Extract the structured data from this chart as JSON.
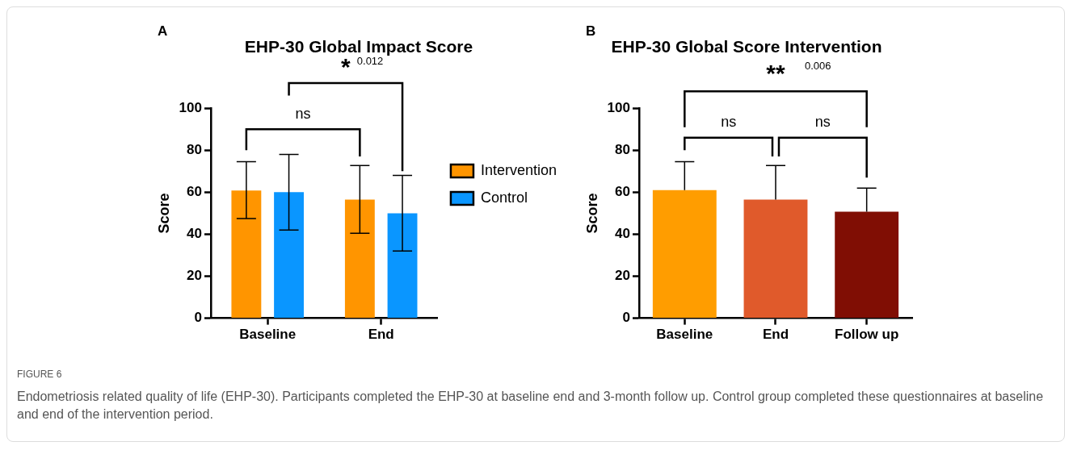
{
  "chart_data": [
    {
      "type": "bar",
      "title": "EHP-30 Global Impact Score",
      "ylabel": "Score",
      "categories": [
        "Baseline",
        "End"
      ],
      "series": [
        {
          "name": "Intervention",
          "color": "#ff9500",
          "values": [
            60.8,
            56.5
          ],
          "errors": [
            [
              47.5,
              74.5
            ],
            [
              40.5,
              72.7
            ]
          ]
        },
        {
          "name": "Control",
          "color": "#0a96ff",
          "values": [
            60,
            50
          ],
          "errors": [
            [
              42,
              78
            ],
            [
              32,
              68
            ]
          ]
        }
      ],
      "ylim": [
        0,
        100
      ],
      "yticks": [
        0,
        20,
        40,
        60,
        80,
        100
      ],
      "grid": false,
      "legend": "right",
      "annotations": [
        "A",
        "ns",
        "*",
        "0.012"
      ]
    },
    {
      "type": "bar",
      "title": "EHP-30 Global Score Intervention",
      "ylabel": "Score",
      "categories": [
        "Baseline",
        "End",
        "Follow up"
      ],
      "values": [
        61,
        56.5,
        50.7
      ],
      "colors": [
        "#ff9d00",
        "#e05a2b",
        "#800e04"
      ],
      "errors": [
        [
          61,
          74.5
        ],
        [
          56.5,
          72.7
        ],
        [
          50.7,
          62
        ]
      ],
      "ylim": [
        0,
        100
      ],
      "yticks": [
        0,
        20,
        40,
        60,
        80,
        100
      ],
      "grid": false,
      "annotations": [
        "B",
        "ns",
        "ns",
        "**",
        "0.006",
        "FIGURE 6",
        "Endometriosis related quality of life (EHP-30). Participants completed the EHP-30 at baseline end and 3-month follow up. Control group completed these questionnaires at baseline and end of the intervention period."
      ]
    }
  ]
}
